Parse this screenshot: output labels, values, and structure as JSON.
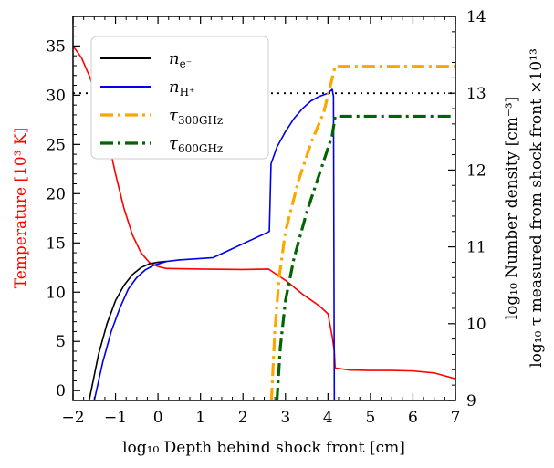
{
  "chart_data": {
    "type": "line",
    "x_axis": {
      "label": "log₁₀ Depth behind shock front [cm]",
      "range": [
        -2,
        7
      ],
      "ticks": [
        -2,
        -1,
        0,
        1,
        2,
        3,
        4,
        5,
        6,
        7
      ]
    },
    "y_left_axis": {
      "label": "Temperature [10³ K]",
      "color": "#ff0000",
      "range": [
        -1,
        38
      ],
      "ticks": [
        0,
        5,
        10,
        15,
        20,
        25,
        30,
        35
      ]
    },
    "y_right_axis": {
      "label_1": "log₁₀ Number density [cm⁻³]",
      "label_2": "log₁₀ τ measured from shock front ×10¹³",
      "range": [
        9,
        14
      ],
      "ticks": [
        9,
        10,
        11,
        12,
        13,
        14
      ]
    },
    "reference_line": {
      "axis": "right",
      "y": 13.0,
      "style": "dotted",
      "color": "#000000"
    },
    "legend": {
      "position": "upper-left",
      "entries": [
        {
          "name": "n",
          "sub": "e⁻",
          "color": "#000000",
          "style": "solid"
        },
        {
          "name": "n",
          "sub": "H⁺",
          "color": "#0000ee",
          "style": "solid"
        },
        {
          "name": "τ",
          "sub": "300GHz",
          "color": "#ffa500",
          "style": "dashdot"
        },
        {
          "name": "τ",
          "sub": "600GHz",
          "color": "#006400",
          "style": "dashdot"
        }
      ]
    },
    "series": [
      {
        "name": "Temperature",
        "axis": "left",
        "color": "#ff0000",
        "style": "solid",
        "width": 1.6,
        "points": [
          [
            -2.0,
            35.0
          ],
          [
            -1.8,
            33.8
          ],
          [
            -1.6,
            31.8
          ],
          [
            -1.4,
            29.0
          ],
          [
            -1.2,
            26.0
          ],
          [
            -1.0,
            22.0
          ],
          [
            -0.8,
            18.5
          ],
          [
            -0.6,
            15.8
          ],
          [
            -0.4,
            14.0
          ],
          [
            -0.2,
            13.0
          ],
          [
            0.0,
            12.6
          ],
          [
            0.2,
            12.4
          ],
          [
            1.0,
            12.35
          ],
          [
            2.0,
            12.3
          ],
          [
            2.6,
            12.35
          ],
          [
            3.0,
            11.2
          ],
          [
            3.4,
            9.8
          ],
          [
            3.8,
            8.6
          ],
          [
            4.0,
            7.8
          ],
          [
            4.1,
            5.5
          ],
          [
            4.15,
            4.0
          ],
          [
            4.17,
            2.3
          ],
          [
            4.5,
            2.1
          ],
          [
            5.0,
            2.05
          ],
          [
            5.5,
            2.05
          ],
          [
            6.0,
            2.0
          ],
          [
            6.5,
            1.8
          ],
          [
            7.0,
            1.2
          ]
        ]
      },
      {
        "name": "n_e-",
        "axis": "right",
        "color": "#000000",
        "style": "solid",
        "width": 1.6,
        "points": [
          [
            -1.62,
            9.0
          ],
          [
            -1.4,
            9.6
          ],
          [
            -1.2,
            10.0
          ],
          [
            -1.0,
            10.3
          ],
          [
            -0.8,
            10.5
          ],
          [
            -0.6,
            10.64
          ],
          [
            -0.4,
            10.73
          ],
          [
            -0.2,
            10.78
          ],
          [
            0.0,
            10.8
          ],
          [
            0.2,
            10.81
          ]
        ]
      },
      {
        "name": "n_H+",
        "axis": "right",
        "color": "#0000ee",
        "style": "solid",
        "width": 1.6,
        "points": [
          [
            -1.5,
            9.0
          ],
          [
            -1.3,
            9.5
          ],
          [
            -1.1,
            9.9
          ],
          [
            -0.9,
            10.2
          ],
          [
            -0.7,
            10.45
          ],
          [
            -0.5,
            10.6
          ],
          [
            -0.3,
            10.7
          ],
          [
            -0.1,
            10.76
          ],
          [
            0.2,
            10.81
          ],
          [
            0.5,
            10.83
          ],
          [
            1.3,
            10.86
          ],
          [
            2.62,
            11.2
          ],
          [
            2.66,
            12.08
          ],
          [
            2.8,
            12.3
          ],
          [
            3.0,
            12.5
          ],
          [
            3.2,
            12.67
          ],
          [
            3.4,
            12.8
          ],
          [
            3.6,
            12.9
          ],
          [
            3.8,
            12.96
          ],
          [
            4.0,
            13.0
          ],
          [
            4.1,
            13.05
          ],
          [
            4.13,
            12.96
          ],
          [
            4.15,
            9.0
          ]
        ]
      },
      {
        "name": "tau_300GHz",
        "axis": "right",
        "color": "#ffa500",
        "style": "dashdot",
        "width": 3.2,
        "points": [
          [
            2.67,
            9.0
          ],
          [
            2.75,
            9.9
          ],
          [
            2.85,
            10.6
          ],
          [
            3.0,
            11.2
          ],
          [
            3.3,
            11.85
          ],
          [
            3.6,
            12.35
          ],
          [
            3.9,
            12.75
          ],
          [
            4.17,
            13.35
          ],
          [
            7.0,
            13.35
          ]
        ]
      },
      {
        "name": "tau_600GHz",
        "axis": "right",
        "color": "#006400",
        "style": "dashdot",
        "width": 3.2,
        "points": [
          [
            2.8,
            9.0
          ],
          [
            2.88,
            9.7
          ],
          [
            3.0,
            10.3
          ],
          [
            3.2,
            10.85
          ],
          [
            3.5,
            11.45
          ],
          [
            3.8,
            11.95
          ],
          [
            4.1,
            12.45
          ],
          [
            4.17,
            12.7
          ],
          [
            7.0,
            12.7
          ]
        ]
      }
    ]
  }
}
